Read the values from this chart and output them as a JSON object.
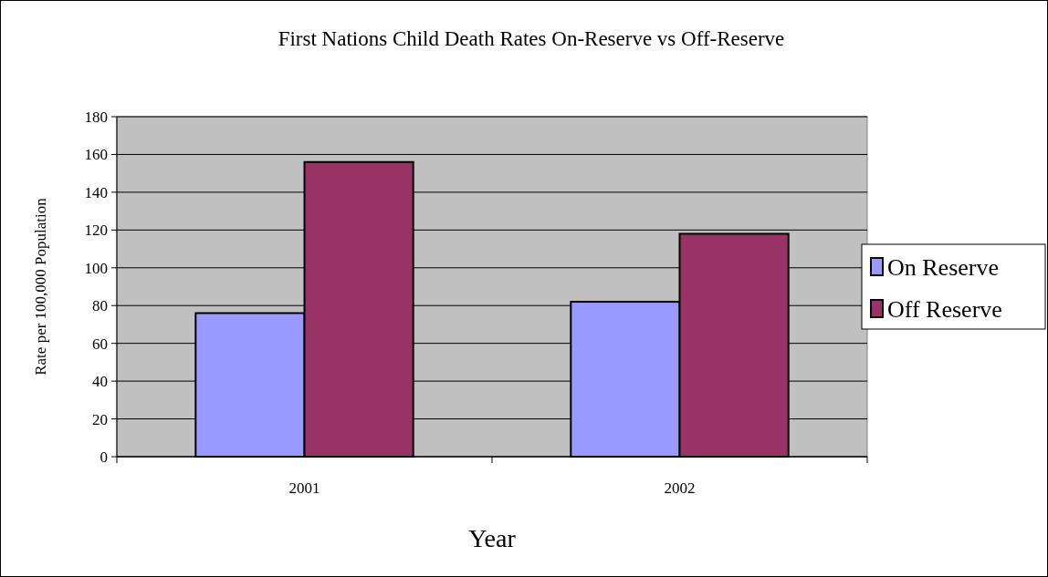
{
  "chart_data": {
    "type": "bar",
    "title": "First Nations Child Death Rates On-Reserve vs Off-Reserve",
    "xlabel": "Year",
    "ylabel": "Rate per 100,000 Population",
    "categories": [
      "2001",
      "2002"
    ],
    "series": [
      {
        "name": "On Reserve",
        "color": "#9999ff",
        "values": [
          76,
          82
        ]
      },
      {
        "name": "Off Reserve",
        "color": "#993366",
        "values": [
          156,
          118
        ]
      }
    ],
    "ylim": [
      0,
      180
    ],
    "yticks": [
      0,
      20,
      40,
      60,
      80,
      100,
      120,
      140,
      160,
      180
    ],
    "grid": "y",
    "legend": "right"
  }
}
